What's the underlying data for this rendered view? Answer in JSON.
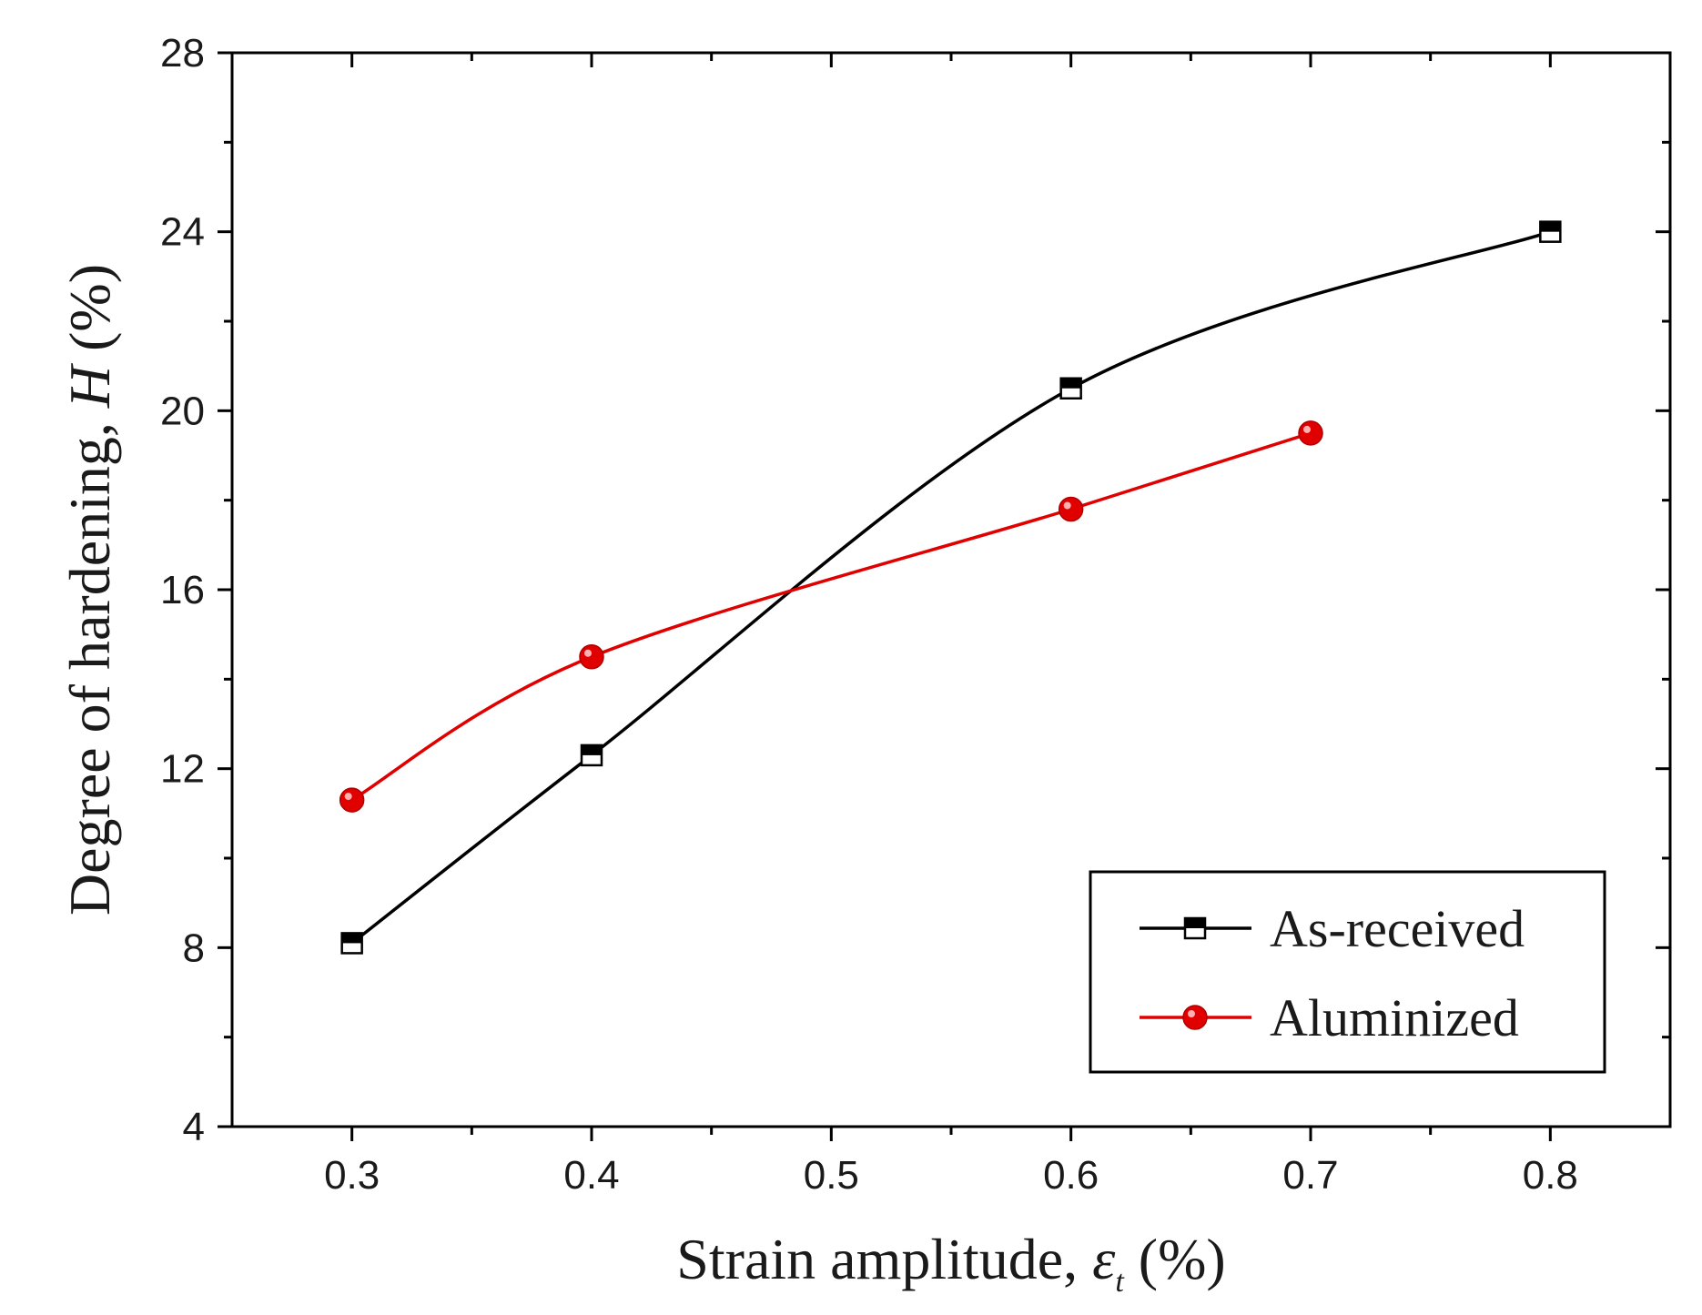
{
  "chart_data": {
    "type": "line",
    "title": "",
    "xlabel": {
      "main": "Strain amplitude, ",
      "symbol": "ε",
      "subscript": "t",
      "unit": " (%)"
    },
    "ylabel": {
      "main": "Degree of hardening, ",
      "symbol": "H",
      "unit": " (%)"
    },
    "xlim": [
      0.25,
      0.85
    ],
    "ylim": [
      4,
      28
    ],
    "x_ticks": [
      0.3,
      0.4,
      0.5,
      0.6,
      0.7,
      0.8
    ],
    "x_tick_labels": [
      "0.3",
      "0.4",
      "0.5",
      "0.6",
      "0.7",
      "0.8"
    ],
    "x_minor_ticks": [
      0.35,
      0.45,
      0.55,
      0.65,
      0.75
    ],
    "y_ticks": [
      4,
      8,
      12,
      16,
      20,
      24,
      28
    ],
    "y_tick_labels": [
      "4",
      "8",
      "12",
      "16",
      "20",
      "24",
      "28"
    ],
    "y_minor_ticks": [
      6,
      10,
      14,
      18,
      22,
      26
    ],
    "grid": false,
    "legend_position": "bottom-right",
    "series": [
      {
        "name": "As-received",
        "color": "#000000",
        "marker": "half-filled-square",
        "x": [
          0.3,
          0.4,
          0.6,
          0.8
        ],
        "y": [
          8.1,
          12.3,
          20.5,
          24.0
        ]
      },
      {
        "name": "Aluminized",
        "color": "#e00000",
        "marker": "circle",
        "x": [
          0.3,
          0.4,
          0.6,
          0.7
        ],
        "y": [
          11.3,
          14.5,
          17.8,
          19.5
        ]
      }
    ]
  }
}
